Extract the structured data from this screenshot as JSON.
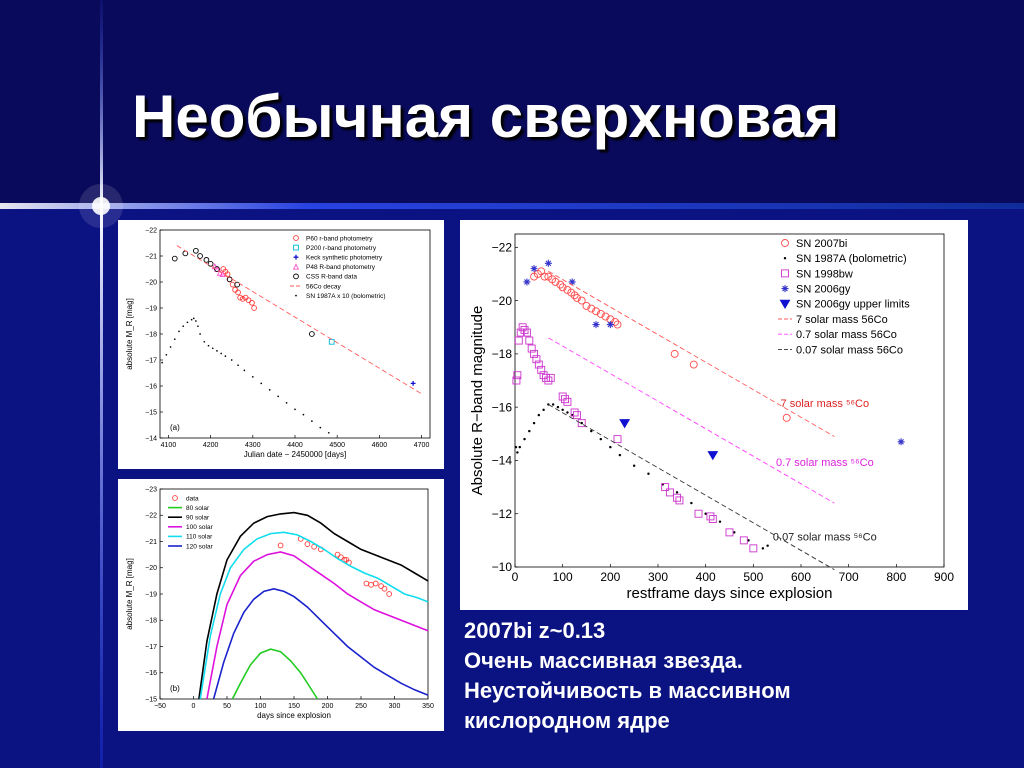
{
  "slide": {
    "title": "Необычная сверхновая",
    "caption": [
      "2007bi  z~0.13",
      "Очень массивная звезда.",
      "Неустойчивость в массивном",
      "кислородном ядре"
    ]
  },
  "colors": {
    "background": "#0a0a5c",
    "accent_band": "#1030a0",
    "text": "#ffffff"
  },
  "chart_data": [
    {
      "type": "scatter",
      "panel_label": "(a)",
      "xlabel": "Julian date − 2450000 [days]",
      "ylabel": "absolute M_R [mag]",
      "xlim": [
        4080,
        4720
      ],
      "ylim": [
        -22,
        -14
      ],
      "y_reversed": true,
      "xticks": [
        4100,
        4200,
        4300,
        4400,
        4500,
        4600,
        4700
      ],
      "yticks": [
        -22,
        -21,
        -20,
        -19,
        -18,
        -17,
        -16,
        -15,
        -14
      ],
      "legend_position": "top-right",
      "series": [
        {
          "name": "P60 r-band photometry",
          "kind": "scatter",
          "marker": "circle",
          "color": "#ff3b3b",
          "x": [
            4240,
            4245,
            4252,
            4258,
            4265,
            4270,
            4276,
            4283,
            4290,
            4298,
            4303,
            4235,
            4230
          ],
          "y": [
            -20.3,
            -20.1,
            -19.9,
            -19.7,
            -19.6,
            -19.4,
            -19.35,
            -19.4,
            -19.3,
            -19.2,
            -19.0,
            -20.4,
            -20.5
          ]
        },
        {
          "name": "P200 r-band photometry",
          "kind": "scatter",
          "marker": "square",
          "color": "#00b7d6",
          "x": [
            4487
          ],
          "y": [
            -17.7
          ]
        },
        {
          "name": "Keck synthetic photometry",
          "kind": "scatter",
          "marker": "plus",
          "color": "#1010d0",
          "x": [
            4680
          ],
          "y": [
            -16.1
          ]
        },
        {
          "name": "P48 R-band photometry",
          "kind": "scatter",
          "marker": "triangle",
          "color": "#ff4fd0",
          "x": [
            4210,
            4216,
            4222,
            4228
          ],
          "y": [
            -20.6,
            -20.5,
            -20.35,
            -20.3
          ]
        },
        {
          "name": "CSS R-band data",
          "kind": "scatter",
          "marker": "circle",
          "color": "#000000",
          "x": [
            4115,
            4140,
            4165,
            4175,
            4190,
            4200,
            4215,
            4245,
            4263,
            4440
          ],
          "y": [
            -20.9,
            -21.1,
            -21.2,
            -21.0,
            -20.85,
            -20.7,
            -20.5,
            -20.1,
            -19.9,
            -18.0
          ]
        },
        {
          "name": "56Co decay",
          "kind": "line",
          "dash": true,
          "color": "#ff5a5a",
          "x": [
            4120,
            4700
          ],
          "y": [
            -21.4,
            -15.7
          ]
        },
        {
          "name": "SN 1987A x 10 (bolometric)",
          "kind": "scatter",
          "marker": "dot",
          "color": "#000000",
          "x": [
            4085,
            4095,
            4105,
            4115,
            4125,
            4135,
            4145,
            4155,
            4160,
            4165,
            4170,
            4175,
            4185,
            4195,
            4205,
            4215,
            4225,
            4235,
            4250,
            4265,
            4280,
            4300,
            4320,
            4340,
            4360,
            4380,
            4400,
            4420,
            4440,
            4460,
            4480
          ],
          "y": [
            -16.9,
            -17.2,
            -17.5,
            -17.8,
            -18.1,
            -18.3,
            -18.45,
            -18.55,
            -18.6,
            -18.5,
            -18.3,
            -18.0,
            -17.7,
            -17.55,
            -17.45,
            -17.35,
            -17.25,
            -17.15,
            -17.0,
            -16.8,
            -16.6,
            -16.35,
            -16.1,
            -15.85,
            -15.6,
            -15.35,
            -15.1,
            -14.9,
            -14.65,
            -14.4,
            -14.2
          ]
        }
      ]
    },
    {
      "type": "line",
      "panel_label": "(b)",
      "xlabel": "days since explosion",
      "ylabel": "absolute M_R [mag]",
      "xlim": [
        -50,
        350
      ],
      "ylim": [
        -23,
        -15
      ],
      "y_reversed": true,
      "xticks": [
        -50,
        0,
        50,
        100,
        150,
        200,
        250,
        300,
        350
      ],
      "yticks": [
        -23,
        -22,
        -21,
        -20,
        -19,
        -18,
        -17,
        -16,
        -15
      ],
      "legend_position": "top-left",
      "series": [
        {
          "name": "data",
          "kind": "scatter",
          "marker": "circle",
          "color": "#ff3b3b",
          "x": [
            130,
            160,
            170,
            180,
            190,
            215,
            220,
            225,
            228,
            232,
            258,
            265,
            272,
            280,
            285,
            292
          ],
          "y": [
            -20.85,
            -21.1,
            -20.9,
            -20.8,
            -20.7,
            -20.5,
            -20.4,
            -20.3,
            -20.3,
            -20.2,
            -19.4,
            -19.35,
            -19.4,
            -19.3,
            -19.2,
            -19.0
          ]
        },
        {
          "name": "80 solar",
          "kind": "line",
          "color": "#22cc22",
          "x": [
            58,
            70,
            85,
            100,
            115,
            130,
            145,
            160,
            175,
            185
          ],
          "y": [
            -15.0,
            -15.6,
            -16.3,
            -16.75,
            -16.9,
            -16.8,
            -16.45,
            -16.0,
            -15.4,
            -15.0
          ]
        },
        {
          "name": "90 solar",
          "kind": "line",
          "color": "#000000",
          "x": [
            8,
            20,
            35,
            50,
            70,
            90,
            110,
            130,
            150,
            170,
            190,
            210,
            230,
            250,
            270,
            290,
            310,
            330,
            350
          ],
          "y": [
            -15.0,
            -17.2,
            -19.0,
            -20.3,
            -21.2,
            -21.7,
            -21.95,
            -22.05,
            -22.1,
            -22.0,
            -21.7,
            -21.3,
            -21.0,
            -20.7,
            -20.5,
            -20.3,
            -20.1,
            -19.8,
            -19.5
          ]
        },
        {
          "name": "100 solar",
          "kind": "line",
          "color": "#dd11dd",
          "x": [
            20,
            35,
            50,
            70,
            90,
            110,
            130,
            150,
            170,
            190,
            210,
            230,
            250,
            270,
            290,
            310,
            330,
            350
          ],
          "y": [
            -15.0,
            -17.0,
            -18.6,
            -19.7,
            -20.25,
            -20.5,
            -20.6,
            -20.45,
            -20.1,
            -19.75,
            -19.4,
            -19.0,
            -18.7,
            -18.4,
            -18.2,
            -18.0,
            -17.8,
            -17.6
          ]
        },
        {
          "name": "110 solar",
          "kind": "line",
          "color": "#11ddee",
          "x": [
            10,
            25,
            40,
            55,
            75,
            95,
            115,
            135,
            155,
            175,
            195,
            215,
            235,
            255,
            275,
            295,
            315,
            335,
            350
          ],
          "y": [
            -15.0,
            -17.4,
            -19.0,
            -20.0,
            -20.7,
            -21.1,
            -21.3,
            -21.35,
            -21.25,
            -21.0,
            -20.7,
            -20.35,
            -20.05,
            -19.8,
            -19.6,
            -19.3,
            -19.0,
            -18.85,
            -18.7
          ]
        },
        {
          "name": "120 solar",
          "kind": "line",
          "color": "#1a22cc",
          "x": [
            30,
            45,
            60,
            75,
            90,
            105,
            120,
            135,
            150,
            170,
            190,
            210,
            230,
            250,
            270,
            290,
            310,
            330,
            350
          ],
          "y": [
            -15.0,
            -16.4,
            -17.5,
            -18.3,
            -18.8,
            -19.1,
            -19.2,
            -19.1,
            -18.9,
            -18.5,
            -18.0,
            -17.5,
            -17.0,
            -16.6,
            -16.2,
            -15.9,
            -15.6,
            -15.35,
            -15.15
          ]
        }
      ]
    },
    {
      "type": "scatter",
      "xlabel": "restframe days since explosion",
      "ylabel": "Absolute R−band magnitude",
      "xlim": [
        0,
        900
      ],
      "ylim": [
        -22.5,
        -10
      ],
      "y_reversed": true,
      "xticks": [
        0,
        100,
        200,
        300,
        400,
        500,
        600,
        700,
        800,
        900
      ],
      "yticks": [
        -22,
        -20,
        -18,
        -16,
        -14,
        -12,
        -10
      ],
      "legend_position": "top-right",
      "series": [
        {
          "name": "SN 2007bi",
          "kind": "scatter",
          "marker": "circle",
          "color": "#ff4b4b",
          "x": [
            40,
            48,
            55,
            62,
            70,
            78,
            85,
            95,
            100,
            110,
            118,
            125,
            130,
            140,
            150,
            160,
            170,
            180,
            190,
            200,
            210,
            215,
            335,
            375,
            570
          ],
          "y": [
            -20.9,
            -21.0,
            -21.1,
            -20.9,
            -20.9,
            -20.8,
            -20.7,
            -20.6,
            -20.5,
            -20.4,
            -20.3,
            -20.2,
            -20.1,
            -20.0,
            -19.8,
            -19.7,
            -19.6,
            -19.5,
            -19.4,
            -19.3,
            -19.2,
            -19.1,
            -18.0,
            -17.6,
            -15.6
          ]
        },
        {
          "name": "SN 1987A (bolometric)",
          "kind": "scatter",
          "marker": "dot",
          "color": "#000000",
          "x": [
            2,
            5,
            10,
            20,
            30,
            40,
            50,
            60,
            70,
            80,
            90,
            100,
            110,
            120,
            140,
            160,
            180,
            200,
            220,
            250,
            280,
            310,
            340,
            370,
            400,
            430,
            460,
            490,
            520,
            530
          ],
          "y": [
            -14.5,
            -14.3,
            -14.5,
            -14.8,
            -15.1,
            -15.4,
            -15.7,
            -15.9,
            -16.1,
            -16.1,
            -16.0,
            -15.9,
            -15.8,
            -15.7,
            -15.4,
            -15.1,
            -14.8,
            -14.5,
            -14.2,
            -13.8,
            -13.5,
            -13.1,
            -12.8,
            -12.4,
            -12.0,
            -11.7,
            -11.3,
            -11.0,
            -10.7,
            -10.8
          ]
        },
        {
          "name": "SN 1998bw",
          "kind": "scatter",
          "marker": "square",
          "color": "#cc33cc",
          "x": [
            3,
            5,
            8,
            12,
            16,
            20,
            25,
            30,
            35,
            40,
            45,
            50,
            55,
            60,
            65,
            70,
            75,
            100,
            105,
            110,
            125,
            130,
            140,
            215,
            315,
            325,
            340,
            345,
            385,
            410,
            415,
            450,
            480,
            500
          ],
          "y": [
            -17.0,
            -17.2,
            -18.5,
            -18.8,
            -19.0,
            -18.9,
            -18.8,
            -18.5,
            -18.2,
            -18.0,
            -17.8,
            -17.6,
            -17.4,
            -17.2,
            -17.1,
            -17.0,
            -17.1,
            -16.4,
            -16.3,
            -16.2,
            -15.8,
            -15.7,
            -15.4,
            -14.8,
            -13.0,
            -12.8,
            -12.6,
            -12.5,
            -12.0,
            -11.9,
            -11.8,
            -11.3,
            -11.0,
            -10.7
          ]
        },
        {
          "name": "SN 2006gy",
          "kind": "scatter",
          "marker": "star",
          "color": "#3333cc",
          "x": [
            25,
            40,
            70,
            120,
            170,
            200,
            810
          ],
          "y": [
            -20.7,
            -21.2,
            -21.4,
            -20.7,
            -19.1,
            -19.1,
            -14.7
          ]
        },
        {
          "name": "SN 2006gy upper limits",
          "kind": "scatter",
          "marker": "triangle-down",
          "color": "#1010d0",
          "x": [
            230,
            415
          ],
          "y": [
            -15.4,
            -14.2
          ]
        },
        {
          "name": "7 solar mass 56Co",
          "kind": "line",
          "dash": true,
          "color": "#ff5a5a",
          "x": [
            70,
            670
          ],
          "y": [
            -21.1,
            -14.9
          ]
        },
        {
          "name": "0.7 solar mass 56Co",
          "kind": "line",
          "dash": true,
          "color": "#ff44ff",
          "x": [
            70,
            670
          ],
          "y": [
            -18.6,
            -12.4
          ]
        },
        {
          "name": "0.07 solar mass 56Co",
          "kind": "line",
          "dash": true,
          "color": "#333333",
          "x": [
            70,
            670
          ],
          "y": [
            -16.1,
            -9.9
          ]
        }
      ],
      "annotations": [
        {
          "text": "7 solar mass ⁵⁶Co",
          "x": 650,
          "y": -16.0,
          "color": "#dd2222"
        },
        {
          "text": "0.7 solar mass ⁵⁶Co",
          "x": 650,
          "y": -13.8,
          "color": "#dd22dd"
        },
        {
          "text": "0.07 solar mass ⁵⁶Co",
          "x": 650,
          "y": -11.0,
          "color": "#222222"
        }
      ]
    }
  ]
}
